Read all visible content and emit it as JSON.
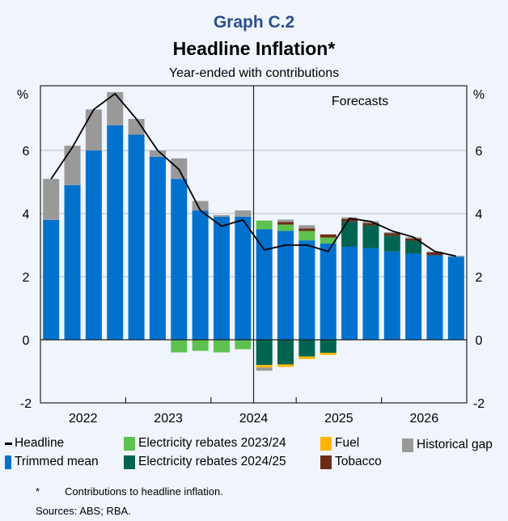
{
  "header": {
    "graph_label": "Graph C.2",
    "title": "Headline Inflation*",
    "subtitle": "Year-ended with contributions"
  },
  "chart_data": {
    "type": "bar",
    "stacked": true,
    "title": "Headline Inflation*",
    "subtitle": "Year-ended with contributions",
    "ylabel_left": "%",
    "ylabel_right": "%",
    "ylim": [
      -2,
      8
    ],
    "yticks": [
      -2,
      0,
      2,
      4,
      6
    ],
    "ytick_labels": [
      "-2",
      "0",
      "2",
      "4",
      "6"
    ],
    "grid": true,
    "xtick_labels": [
      "2022",
      "2023",
      "2024",
      "2025",
      "2026"
    ],
    "categories": [
      "2022 Q1",
      "2022 Q2",
      "2022 Q3",
      "2022 Q4",
      "2023 Q1",
      "2023 Q2",
      "2023 Q3",
      "2023 Q4",
      "2024 Q1",
      "2024 Q2",
      "2024 Q3",
      "2024 Q4",
      "2025 Q1",
      "2025 Q2",
      "2025 Q3",
      "2025 Q4",
      "2026 Q1",
      "2026 Q2",
      "2026 Q3",
      "2026 Q4"
    ],
    "forecast_annotation": "Forecasts",
    "forecast_start_index": 10,
    "series": [
      {
        "name": "Trimmed mean",
        "color": "#0072ce",
        "values": [
          3.8,
          4.9,
          6.0,
          6.8,
          6.5,
          5.8,
          5.1,
          4.1,
          3.9,
          3.9,
          3.5,
          3.45,
          3.15,
          3.05,
          2.95,
          2.9,
          2.8,
          2.73,
          2.68,
          2.63
        ]
      },
      {
        "name": "Electricity rebates 2023/24",
        "color": "#5dc150",
        "values": [
          0,
          0,
          0,
          0,
          0,
          0,
          -0.4,
          -0.35,
          -0.4,
          -0.3,
          0.28,
          0.2,
          0.3,
          0.19,
          0,
          0,
          0,
          0,
          0,
          0
        ]
      },
      {
        "name": "Electricity rebates 2024/25",
        "color": "#006450",
        "values": [
          0,
          0,
          0,
          0,
          0,
          0,
          0,
          0,
          0,
          0,
          -0.8,
          -0.78,
          -0.53,
          -0.41,
          0.8,
          0.73,
          0.5,
          0.41,
          0,
          0
        ]
      },
      {
        "name": "Fuel",
        "color": "#ffb600",
        "values": [
          0,
          0,
          0,
          0,
          0,
          0,
          0,
          0,
          0,
          0,
          -0.08,
          -0.08,
          -0.08,
          -0.07,
          0,
          0,
          0,
          0,
          0,
          0
        ]
      },
      {
        "name": "Tobacco",
        "color": "#6b2d15",
        "values": [
          0,
          0,
          0,
          0,
          0,
          0,
          0,
          0,
          0,
          0,
          0,
          0.08,
          0.08,
          0.1,
          0.08,
          0.07,
          0.08,
          0.07,
          0.09,
          0
        ]
      },
      {
        "name": "Historical gap",
        "color": "#999999",
        "values": [
          1.3,
          1.25,
          1.3,
          1.05,
          0.5,
          0.2,
          0.65,
          0.3,
          0.05,
          0.2,
          -0.1,
          0.08,
          0.1,
          0,
          0.05,
          0.06,
          0.03,
          0.04,
          0.02,
          0.03
        ]
      }
    ],
    "line": {
      "name": "Headline",
      "color": "#000000",
      "values": [
        5.1,
        6.1,
        7.3,
        7.8,
        7.0,
        6.0,
        5.4,
        4.1,
        3.6,
        3.8,
        2.85,
        3.0,
        3.0,
        2.8,
        3.85,
        3.75,
        3.45,
        3.25,
        2.8,
        2.65
      ]
    }
  },
  "legend": {
    "headline": "Headline",
    "trimmed_mean": "Trimmed mean",
    "elec_2324": "Electricity rebates 2023/24",
    "elec_2425": "Electricity rebates 2024/25",
    "fuel": "Fuel",
    "tobacco": "Tobacco",
    "historical_gap": "Historical gap"
  },
  "footnotes": {
    "marker": "*",
    "note": "Contributions to headline inflation.",
    "sources": "Sources: ABS; RBA."
  }
}
